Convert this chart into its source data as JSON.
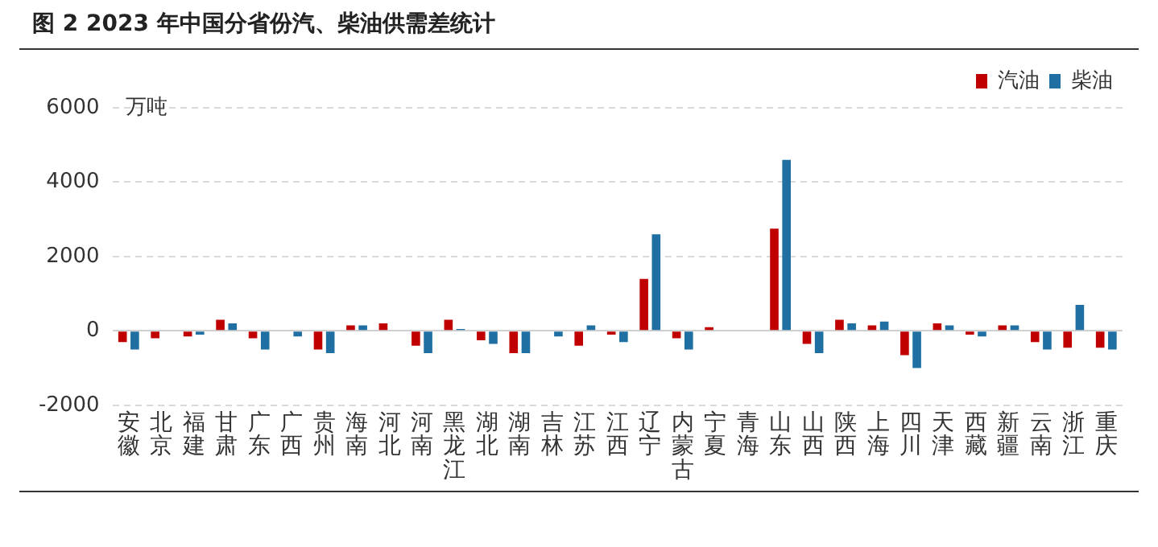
{
  "chart_data": {
    "type": "bar",
    "title": "图 2 2023 年中国分省份汽、柴油供需差统计",
    "ylabel": "万吨",
    "categories": [
      "安徽",
      "北京",
      "福建",
      "甘肃",
      "广东",
      "广西",
      "贵州",
      "海南",
      "河北",
      "河南",
      "黑龙江",
      "湖北",
      "湖南",
      "吉林",
      "江苏",
      "江西",
      "辽宁",
      "内蒙古",
      "宁夏",
      "青海",
      "山东",
      "山西",
      "陕西",
      "上海",
      "四川",
      "天津",
      "西藏",
      "新疆",
      "云南",
      "浙江",
      "重庆"
    ],
    "series": [
      {
        "name": "汽油",
        "color": "#c00000",
        "values": [
          -300,
          -200,
          -150,
          300,
          -200,
          0,
          -500,
          150,
          200,
          -400,
          300,
          -250,
          -600,
          0,
          -400,
          -100,
          1400,
          -200,
          100,
          0,
          2750,
          -350,
          300,
          150,
          -650,
          200,
          -100,
          150,
          -300,
          -450,
          -450
        ]
      },
      {
        "name": "柴油",
        "color": "#1f6fa3",
        "values": [
          -500,
          0,
          -100,
          200,
          -500,
          -150,
          -600,
          150,
          0,
          -600,
          50,
          -350,
          -600,
          -150,
          150,
          -300,
          2600,
          -500,
          0,
          0,
          4600,
          -600,
          200,
          250,
          -1000,
          150,
          -150,
          150,
          -500,
          700,
          -500
        ]
      }
    ],
    "ylim": [
      -2000,
      6000
    ],
    "yticks": [
      -2000,
      0,
      2000,
      4000,
      6000
    ],
    "grid": "y",
    "legend": "top right"
  }
}
